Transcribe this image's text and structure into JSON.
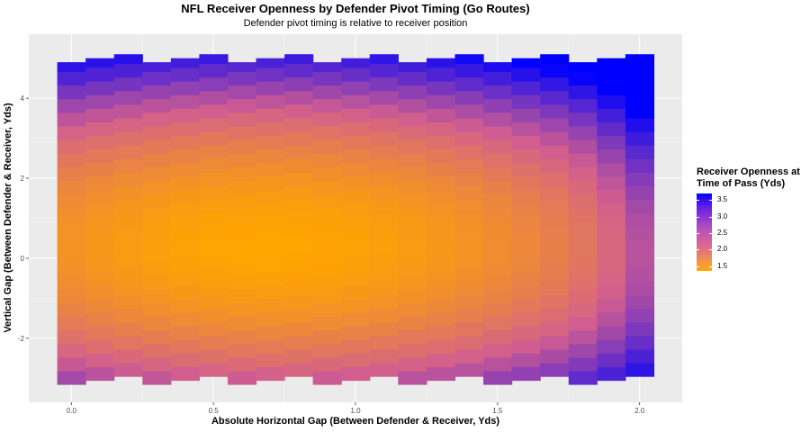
{
  "chart_data": {
    "type": "heatmap",
    "title": "NFL Receiver Openness by Defender Pivot Timing (Go Routes)",
    "subtitle": "Defender pivot timing is relative to receiver position",
    "xlabel": "Absolute Horizontal Gap (Between Defender & Receiver, Yds)",
    "ylabel": "Vertical Gap (Between Defender & Receiver, Yds)",
    "xlim": [
      -0.15,
      2.15
    ],
    "ylim": [
      -3.6,
      5.6
    ],
    "x_ticks": [
      "0.0",
      "0.5",
      "1.0",
      "1.5",
      "2.0"
    ],
    "y_ticks": [
      "-2",
      "0",
      "2",
      "4"
    ],
    "grid": true,
    "legend_position": "right",
    "legend": {
      "title": "Receiver Openness at Time of Pass (Yds)",
      "ticks": [
        "3.5",
        "3.0",
        "2.5",
        "2.0",
        "1.5"
      ],
      "min": 1.35,
      "max": 3.7,
      "color_low": "#ffa500",
      "color_high": "#0000ff"
    },
    "x": [
      0.0,
      0.1,
      0.2,
      0.3,
      0.4,
      0.5,
      0.6,
      0.7,
      0.8,
      0.9,
      1.0,
      1.1,
      1.2,
      1.3,
      1.4,
      1.5,
      1.6,
      1.7,
      1.8,
      1.9,
      2.0
    ],
    "y_min": [
      -3.15,
      -3.05,
      -2.95,
      -3.15,
      -3.05,
      -2.95,
      -3.15,
      -3.05,
      -2.95,
      -3.15,
      -3.05,
      -2.95,
      -3.15,
      -3.05,
      -2.95,
      -3.15,
      -3.05,
      -2.95,
      -3.15,
      -3.05,
      -2.95
    ],
    "y_max": [
      4.9,
      5.0,
      5.1,
      4.9,
      5.0,
      5.1,
      4.9,
      5.0,
      5.1,
      4.9,
      5.0,
      5.1,
      4.9,
      5.0,
      5.1,
      4.9,
      5.0,
      5.1,
      4.9,
      5.0,
      5.1
    ],
    "x_bin_width": 0.1,
    "y_bin_height": 0.34,
    "openness_surface": {
      "min_value": 1.35,
      "min_at_x": 0.7,
      "min_at_y": 0.3,
      "x_coef": 0.55,
      "y_coef_above": 0.09,
      "y_coef_below": 0.1,
      "right_edge_start": 1.7,
      "right_edge_coef": 5.0,
      "max_value": 3.7
    }
  }
}
